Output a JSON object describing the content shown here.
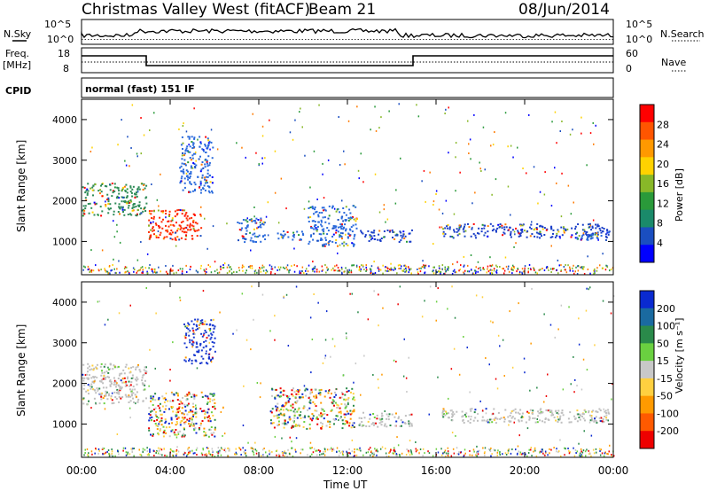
{
  "header": {
    "station": "Christmas Valley West (fitACF)",
    "beam": "Beam 21",
    "date": "08/Jun/2014"
  },
  "noise_panel": {
    "left_label": "N.Sky",
    "right_label": "N.Search",
    "left_ticks": [
      "10^5",
      "10^0"
    ],
    "right_ticks": [
      "10^5",
      "10^0"
    ]
  },
  "freq_panel": {
    "left_label_line1": "Freq.",
    "left_label_line2": "[MHz]",
    "right_label": "Nave",
    "left_ticks": [
      "18",
      "8"
    ],
    "right_ticks": [
      "60",
      "0"
    ]
  },
  "cpid": {
    "label": "CPID",
    "mode": "normal (fast) 151 IF"
  },
  "chart_data": [
    {
      "type": "heatmap",
      "title": "",
      "quantity": "Power",
      "ylabel": "Slant Range [km]",
      "xlabel": "",
      "colorbar_label": "Power [dB]",
      "colorbar_ticks": [
        "28",
        "24",
        "20",
        "16",
        "12",
        "8",
        "4"
      ],
      "colorbar_colors": [
        "#ff0000",
        "#ff5500",
        "#ff9900",
        "#ffd200",
        "#88b828",
        "#2a9a3a",
        "#1a8a6a",
        "#1a4ec0",
        "#0000ff"
      ],
      "y_ticks": [
        "4000",
        "3000",
        "2000",
        "1000"
      ],
      "ylim": [
        180,
        4500
      ],
      "xlim_hours": [
        0,
        24
      ],
      "regions": [
        {
          "t0": 0.0,
          "t1": 2.9,
          "r0": 1650,
          "r1": 2450,
          "level": "high"
        },
        {
          "t0": 3.0,
          "t1": 5.4,
          "r0": 1050,
          "r1": 1800,
          "level": "max"
        },
        {
          "t0": 4.4,
          "t1": 5.9,
          "r0": 2200,
          "r1": 3600,
          "level": "mid"
        },
        {
          "t0": 7.0,
          "t1": 8.3,
          "r0": 1000,
          "r1": 1600,
          "level": "mid"
        },
        {
          "t0": 8.8,
          "t1": 10.0,
          "r0": 1050,
          "r1": 1300,
          "level": "mid"
        },
        {
          "t0": 10.2,
          "t1": 12.4,
          "r0": 900,
          "r1": 1900,
          "level": "mid"
        },
        {
          "t0": 12.5,
          "t1": 14.9,
          "r0": 1000,
          "r1": 1300,
          "level": "low"
        },
        {
          "t0": 16.2,
          "t1": 23.8,
          "r0": 1100,
          "r1": 1450,
          "level": "low"
        },
        {
          "t0": 22.2,
          "t1": 23.8,
          "r0": 1050,
          "r1": 1250,
          "level": "mid"
        }
      ]
    },
    {
      "type": "heatmap",
      "title": "",
      "quantity": "Velocity",
      "ylabel": "Slant Range [km]",
      "xlabel": "Time UT",
      "colorbar_label": "Velocity [m s⁻¹]",
      "colorbar_ticks": [
        "200",
        "100",
        "50",
        "15",
        "-15",
        "-50",
        "-100",
        "-200"
      ],
      "colorbar_colors": [
        "#0a2ad0",
        "#1a6aa0",
        "#2a8a4a",
        "#6ad040",
        "#c8c8c8",
        "#ffd040",
        "#ff9a00",
        "#ff5a00",
        "#ee0000"
      ],
      "y_ticks": [
        "4000",
        "3000",
        "2000",
        "1000"
      ],
      "ylim": [
        180,
        4500
      ],
      "x_ticks": [
        "00:00",
        "04:00",
        "08:00",
        "12:00",
        "16:00",
        "20:00",
        "00:00"
      ],
      "xlim_hours": [
        0,
        24
      ],
      "regions": [
        {
          "t0": 0.0,
          "t1": 2.9,
          "r0": 1500,
          "r1": 2500,
          "level": "ground"
        },
        {
          "t0": 3.0,
          "t1": 6.0,
          "r0": 700,
          "r1": 1800,
          "level": "mixed"
        },
        {
          "t0": 4.6,
          "t1": 6.0,
          "r0": 2500,
          "r1": 3600,
          "level": "toward"
        },
        {
          "t0": 8.5,
          "t1": 12.3,
          "r0": 900,
          "r1": 1900,
          "level": "mixed"
        },
        {
          "t0": 12.5,
          "t1": 14.9,
          "r0": 950,
          "r1": 1300,
          "level": "ground"
        },
        {
          "t0": 16.2,
          "t1": 23.8,
          "r0": 1050,
          "r1": 1400,
          "level": "ground"
        }
      ]
    }
  ],
  "colors": {
    "high": "#2e8b57",
    "max": "#ff2a00",
    "mid": "#2a6adc",
    "low": "#1a3ec8",
    "ground": "#bfbfbf",
    "mixed": "#2a8a4a",
    "toward": "#1a3ad0"
  }
}
